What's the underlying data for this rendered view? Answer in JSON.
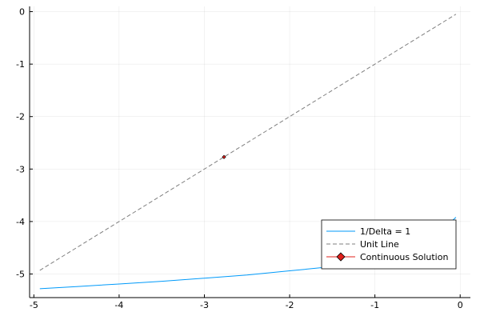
{
  "chart_data": {
    "type": "line",
    "title": "",
    "xlabel": "",
    "ylabel": "",
    "xlim": [
      -5.05,
      0.12
    ],
    "ylim": [
      -5.45,
      0.1
    ],
    "x_ticks": [
      -5,
      -4,
      -3,
      -2,
      -1,
      0
    ],
    "x_tick_labels": [
      "-5",
      "-4",
      "-3",
      "-2",
      "-1",
      "0"
    ],
    "y_ticks": [
      0,
      -1,
      -2,
      -3,
      -4,
      -5
    ],
    "y_tick_labels": [
      "0",
      "-1",
      "-2",
      "-3",
      "-4",
      "-5"
    ],
    "grid": true,
    "legend_position": "bottom-right",
    "series": [
      {
        "name": "1/Delta = 1",
        "style": "solid",
        "color": "#009AFA",
        "x": [
          -4.93,
          -4.5,
          -4.0,
          -3.5,
          -3.0,
          -2.5,
          -2.0,
          -1.5,
          -1.0,
          -0.7,
          -0.4,
          -0.2,
          -0.05
        ],
        "y": [
          -5.28,
          -5.24,
          -5.19,
          -5.14,
          -5.08,
          -5.02,
          -4.94,
          -4.86,
          -4.76,
          -4.61,
          -4.38,
          -4.15,
          -3.92
        ]
      },
      {
        "name": "Unit Line",
        "style": "dashed",
        "color": "#7F7F7F",
        "x": [
          -4.93,
          -0.05
        ],
        "y": [
          -4.93,
          -0.05
        ]
      },
      {
        "name": "Continuous Solution",
        "style": "marker",
        "marker": "diamond",
        "color": "#E0201B",
        "x": [
          -2.77
        ],
        "y": [
          -2.77
        ]
      }
    ]
  }
}
